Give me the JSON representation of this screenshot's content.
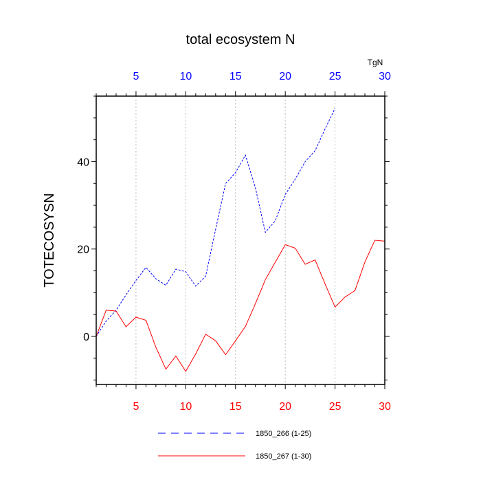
{
  "chart_data": {
    "type": "line",
    "title": "total ecosystem N",
    "ylabel": "TOTECOSYSN",
    "top_axis_unit": "TgN",
    "xlim": [
      1,
      30
    ],
    "ylim": [
      -11,
      55
    ],
    "y_ticks": [
      0,
      20,
      40
    ],
    "y_tick_labels": [
      "0",
      "20",
      "40"
    ],
    "top_ticks": [
      5,
      10,
      15,
      20,
      25,
      30
    ],
    "top_tick_labels": [
      "5",
      "10",
      "15",
      "20",
      "25",
      "30"
    ],
    "bottom_ticks": [
      5,
      10,
      15,
      20,
      25,
      30
    ],
    "bottom_tick_labels": [
      "5",
      "10",
      "15",
      "20",
      "25",
      "30"
    ],
    "grid": "vertical dotted at top-axis ticks",
    "legend_position": "bottom",
    "colors": {
      "series_blue": "#0000ff",
      "series_red": "#ff0000",
      "grid": "#aaaaaa",
      "frame": "#000000"
    },
    "series": [
      {
        "name": "1850_266 (1-25)",
        "color": "#0000ff",
        "dash": "dashed",
        "x": [
          1,
          2,
          3,
          4,
          5,
          6,
          7,
          8,
          9,
          10,
          11,
          12,
          13,
          14,
          15,
          16,
          17,
          18,
          19,
          20,
          21,
          22,
          23,
          24,
          25
        ],
        "y": [
          0,
          3.5,
          6,
          9.5,
          12.8,
          15.8,
          13.2,
          11.7,
          15.4,
          14.8,
          11.5,
          13.8,
          24.5,
          35,
          37.5,
          41.5,
          34,
          23.8,
          26.5,
          32.5,
          36,
          40,
          42.5,
          47.5,
          52.2
        ]
      },
      {
        "name": "1850_267 (1-30)",
        "color": "#ff0000",
        "dash": "solid",
        "x": [
          1,
          2,
          3,
          4,
          5,
          6,
          7,
          8,
          9,
          10,
          11,
          12,
          13,
          14,
          15,
          16,
          17,
          18,
          19,
          20,
          21,
          22,
          23,
          24,
          25,
          26,
          27,
          28,
          29,
          30
        ],
        "y": [
          0,
          6,
          5.8,
          2.2,
          4.4,
          3.7,
          -2.5,
          -7.5,
          -4.5,
          -8,
          -4,
          0.5,
          -1,
          -4.2,
          -1,
          2.3,
          7.5,
          13,
          17,
          21,
          20.2,
          16.5,
          17.5,
          12,
          6.7,
          9,
          10.5,
          17,
          22,
          21.8
        ]
      }
    ]
  }
}
